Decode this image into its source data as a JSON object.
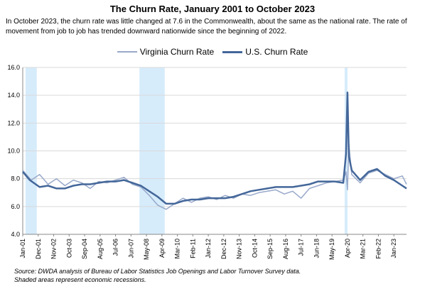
{
  "chart_data": {
    "type": "line",
    "title": "The Churn Rate, January 2001 to October 2023",
    "subtitle": "In October 2023, the churn rate was little changed at 7.6 in the Commonwealth, about the same as the national rate. The rate of movement from job to job has trended downward nationwide since the beginning of 2022.",
    "xlabel": "",
    "ylabel": "",
    "ylim": [
      4.0,
      16.0
    ],
    "y_ticks": [
      "4.0",
      "6.0",
      "8.0",
      "10.0",
      "12.0",
      "14.0",
      "16.0"
    ],
    "x_range": [
      "2001-01",
      "2023-10"
    ],
    "x_ticks": [
      "Jan-01",
      "Dec-01",
      "Nov-02",
      "Oct-03",
      "Sep-04",
      "Aug-05",
      "Jul-06",
      "Jun-07",
      "May-08",
      "Apr-09",
      "Mar-10",
      "Feb-11",
      "Jan-12",
      "Dec-12",
      "Nov-13",
      "Oct-14",
      "Sep-15",
      "Aug-16",
      "Jul-17",
      "Jun-18",
      "May-19",
      "Apr-20",
      "Mar-21",
      "Feb-22",
      "Jan-23"
    ],
    "grid": "horizontal",
    "legend_position": "top",
    "recessions": [
      {
        "start": "2001-03",
        "end": "2001-11"
      },
      {
        "start": "2007-12",
        "end": "2009-06"
      },
      {
        "start": "2020-02",
        "end": "2020-04"
      }
    ],
    "series": [
      {
        "name": "Virginia Churn Rate",
        "color": "#98a9ca",
        "points": [
          [
            "2001-01",
            8.6
          ],
          [
            "2001-07",
            7.9
          ],
          [
            "2002-01",
            8.3
          ],
          [
            "2002-07",
            7.6
          ],
          [
            "2003-01",
            8.0
          ],
          [
            "2003-07",
            7.5
          ],
          [
            "2004-01",
            7.9
          ],
          [
            "2004-07",
            7.7
          ],
          [
            "2005-01",
            7.3
          ],
          [
            "2005-07",
            7.8
          ],
          [
            "2006-01",
            7.7
          ],
          [
            "2006-07",
            7.9
          ],
          [
            "2007-01",
            8.1
          ],
          [
            "2007-07",
            7.6
          ],
          [
            "2008-01",
            7.4
          ],
          [
            "2008-07",
            6.8
          ],
          [
            "2009-01",
            6.1
          ],
          [
            "2009-07",
            5.8
          ],
          [
            "2010-01",
            6.2
          ],
          [
            "2010-07",
            6.6
          ],
          [
            "2011-01",
            6.3
          ],
          [
            "2011-07",
            6.6
          ],
          [
            "2012-01",
            6.7
          ],
          [
            "2012-07",
            6.5
          ],
          [
            "2013-01",
            6.8
          ],
          [
            "2013-07",
            6.6
          ],
          [
            "2014-01",
            6.9
          ],
          [
            "2014-07",
            6.8
          ],
          [
            "2015-01",
            7.0
          ],
          [
            "2015-07",
            7.1
          ],
          [
            "2016-01",
            7.2
          ],
          [
            "2016-07",
            6.9
          ],
          [
            "2017-01",
            7.1
          ],
          [
            "2017-07",
            6.6
          ],
          [
            "2018-01",
            7.3
          ],
          [
            "2018-07",
            7.5
          ],
          [
            "2019-01",
            7.7
          ],
          [
            "2019-07",
            7.8
          ],
          [
            "2020-01",
            7.9
          ],
          [
            "2020-03",
            8.5
          ],
          [
            "2020-04",
            7.2
          ],
          [
            "2020-05",
            10.5
          ],
          [
            "2020-07",
            8.3
          ],
          [
            "2021-01",
            7.7
          ],
          [
            "2021-07",
            8.4
          ],
          [
            "2022-01",
            8.6
          ],
          [
            "2022-07",
            8.3
          ],
          [
            "2023-01",
            8.0
          ],
          [
            "2023-07",
            8.2
          ],
          [
            "2023-10",
            7.6
          ]
        ]
      },
      {
        "name": "U.S. Churn Rate",
        "color": "#44679a",
        "points": [
          [
            "2001-01",
            8.5
          ],
          [
            "2001-06",
            7.9
          ],
          [
            "2002-01",
            7.4
          ],
          [
            "2002-07",
            7.5
          ],
          [
            "2003-01",
            7.3
          ],
          [
            "2003-07",
            7.3
          ],
          [
            "2004-01",
            7.5
          ],
          [
            "2004-07",
            7.6
          ],
          [
            "2005-01",
            7.6
          ],
          [
            "2005-07",
            7.7
          ],
          [
            "2006-01",
            7.8
          ],
          [
            "2006-07",
            7.8
          ],
          [
            "2007-01",
            7.9
          ],
          [
            "2007-07",
            7.7
          ],
          [
            "2008-01",
            7.5
          ],
          [
            "2008-07",
            7.1
          ],
          [
            "2009-01",
            6.7
          ],
          [
            "2009-07",
            6.2
          ],
          [
            "2010-01",
            6.2
          ],
          [
            "2010-07",
            6.4
          ],
          [
            "2011-01",
            6.5
          ],
          [
            "2011-07",
            6.5
          ],
          [
            "2012-01",
            6.6
          ],
          [
            "2012-07",
            6.6
          ],
          [
            "2013-01",
            6.6
          ],
          [
            "2013-07",
            6.7
          ],
          [
            "2014-01",
            6.9
          ],
          [
            "2014-07",
            7.1
          ],
          [
            "2015-01",
            7.2
          ],
          [
            "2015-07",
            7.3
          ],
          [
            "2016-01",
            7.4
          ],
          [
            "2016-07",
            7.4
          ],
          [
            "2017-01",
            7.4
          ],
          [
            "2017-07",
            7.5
          ],
          [
            "2018-01",
            7.6
          ],
          [
            "2018-07",
            7.8
          ],
          [
            "2019-01",
            7.8
          ],
          [
            "2019-07",
            7.8
          ],
          [
            "2020-01",
            7.7
          ],
          [
            "2020-03",
            9.8
          ],
          [
            "2020-04",
            14.2
          ],
          [
            "2020-05",
            9.6
          ],
          [
            "2020-07",
            8.6
          ],
          [
            "2021-01",
            7.9
          ],
          [
            "2021-07",
            8.5
          ],
          [
            "2022-01",
            8.7
          ],
          [
            "2022-07",
            8.2
          ],
          [
            "2023-01",
            7.9
          ],
          [
            "2023-07",
            7.5
          ],
          [
            "2023-10",
            7.3
          ]
        ]
      }
    ]
  },
  "source": {
    "line1": "Source: DWDA analysis of Bureau of Labor Statistics Job Openings and Labor Turnover Survey data.",
    "line2": "Shaded areas represent economic recessions."
  }
}
